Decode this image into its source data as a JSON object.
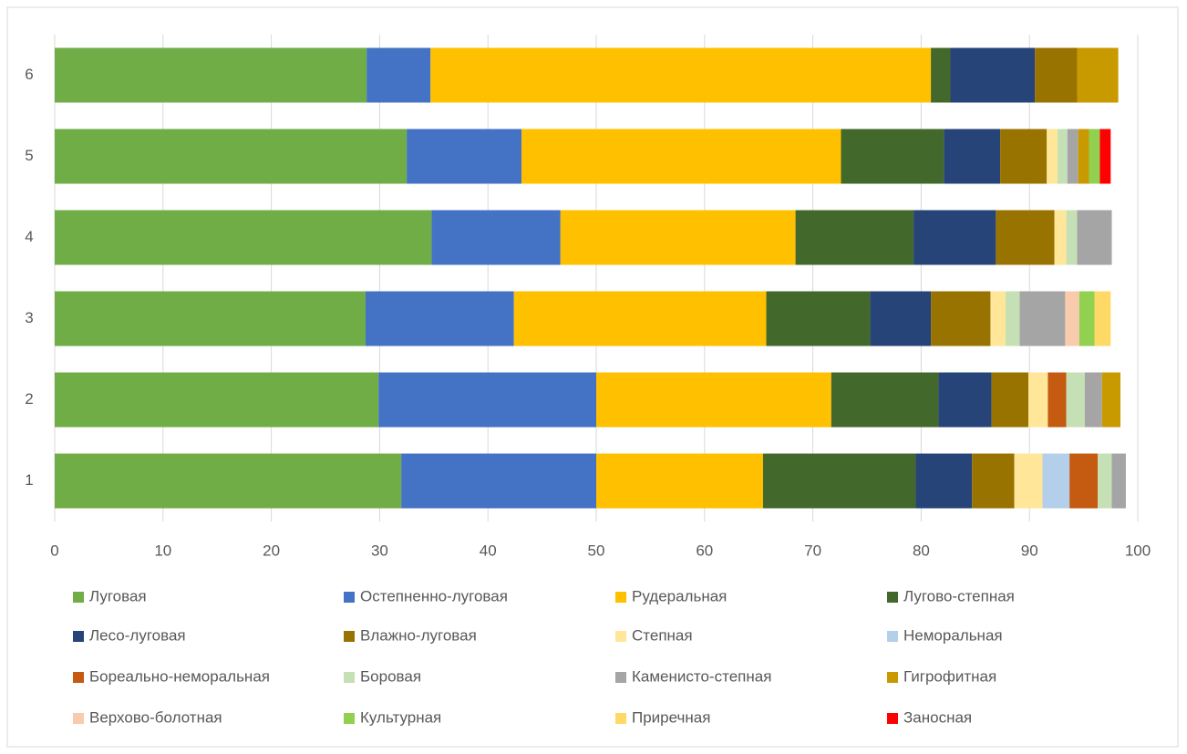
{
  "chart_data": {
    "type": "stacked-bar-horizontal",
    "categories": [
      "1",
      "2",
      "3",
      "4",
      "5",
      "6"
    ],
    "xlim": [
      0,
      100
    ],
    "xticks": [
      0,
      10,
      20,
      30,
      40,
      50,
      60,
      70,
      80,
      90,
      100
    ],
    "grid": true,
    "series": [
      {
        "name": "Луговая",
        "color": "#70ad47",
        "values": [
          32.0,
          29.9,
          28.7,
          34.8,
          32.5,
          28.8
        ]
      },
      {
        "name": "Остепненно-луговая",
        "color": "#4472c4",
        "values": [
          18.0,
          20.1,
          13.7,
          11.9,
          10.6,
          5.9
        ]
      },
      {
        "name": "Рудеральная",
        "color": "#ffc000",
        "values": [
          15.4,
          21.7,
          23.3,
          21.7,
          29.5,
          46.2
        ]
      },
      {
        "name": "Лугово-степная",
        "color": "#43682b",
        "values": [
          14.1,
          9.9,
          9.6,
          10.9,
          9.5,
          1.8
        ]
      },
      {
        "name": "Лесо-луговая",
        "color": "#264478",
        "values": [
          5.2,
          4.9,
          5.6,
          7.6,
          5.2,
          7.8
        ]
      },
      {
        "name": "Влажно-луговая",
        "color": "#997300",
        "values": [
          3.9,
          3.4,
          5.5,
          5.4,
          4.3,
          3.9
        ]
      },
      {
        "name": "Степная",
        "color": "#ffe699",
        "values": [
          2.6,
          1.8,
          1.4,
          1.1,
          1.0,
          0
        ]
      },
      {
        "name": "Неморальная",
        "color": "#b4cfea",
        "values": [
          2.5,
          0,
          0,
          0,
          0,
          0
        ]
      },
      {
        "name": "Бореально-неморальная",
        "color": "#c55a11",
        "values": [
          2.6,
          1.7,
          0,
          0,
          0,
          0
        ]
      },
      {
        "name": "Боровая",
        "color": "#c5e0b4",
        "values": [
          1.3,
          1.7,
          1.3,
          1.0,
          0.9,
          0
        ]
      },
      {
        "name": "Каменисто-степная",
        "color": "#a5a5a5",
        "values": [
          1.3,
          1.6,
          4.2,
          3.2,
          1.0,
          0
        ]
      },
      {
        "name": "Гигрофитная",
        "color": "#c99a00",
        "values": [
          0,
          1.7,
          0,
          0,
          1.0,
          3.8
        ]
      },
      {
        "name": "Верхово-болотная",
        "color": "#f8cbad",
        "values": [
          0,
          0,
          1.3,
          0,
          0,
          0
        ]
      },
      {
        "name": "Культурная",
        "color": "#92d050",
        "values": [
          0,
          0,
          1.4,
          0,
          1.0,
          0
        ]
      },
      {
        "name": "Приречная",
        "color": "#ffd966",
        "values": [
          0,
          0,
          1.5,
          0,
          0,
          0
        ]
      },
      {
        "name": "Заносная",
        "color": "#ff0000",
        "values": [
          0,
          0,
          0,
          0,
          1.0,
          0
        ]
      }
    ]
  }
}
